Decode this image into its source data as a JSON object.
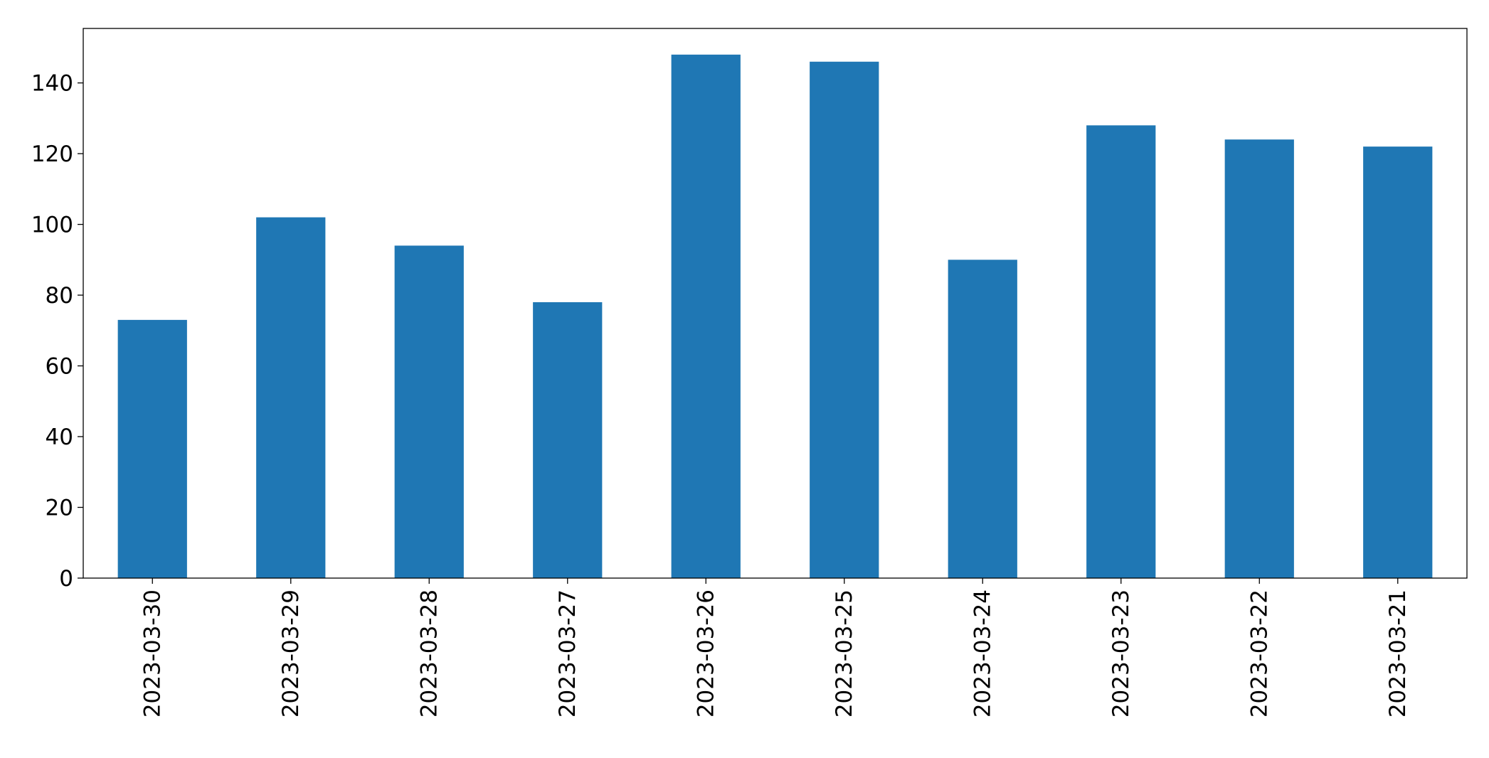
{
  "chart_data": {
    "type": "bar",
    "title": "",
    "xlabel": "",
    "ylabel": "",
    "categories": [
      "2023-03-30",
      "2023-03-29",
      "2023-03-28",
      "2023-03-27",
      "2023-03-26",
      "2023-03-25",
      "2023-03-24",
      "2023-03-23",
      "2023-03-22",
      "2023-03-21"
    ],
    "values": [
      73,
      102,
      94,
      78,
      148,
      146,
      90,
      128,
      124,
      122
    ],
    "ylim": [
      0,
      155.4
    ],
    "yticks": [
      0,
      20,
      40,
      60,
      80,
      100,
      120,
      140
    ],
    "bar_color": "#1f77b4",
    "grid": false,
    "legend": false
  }
}
